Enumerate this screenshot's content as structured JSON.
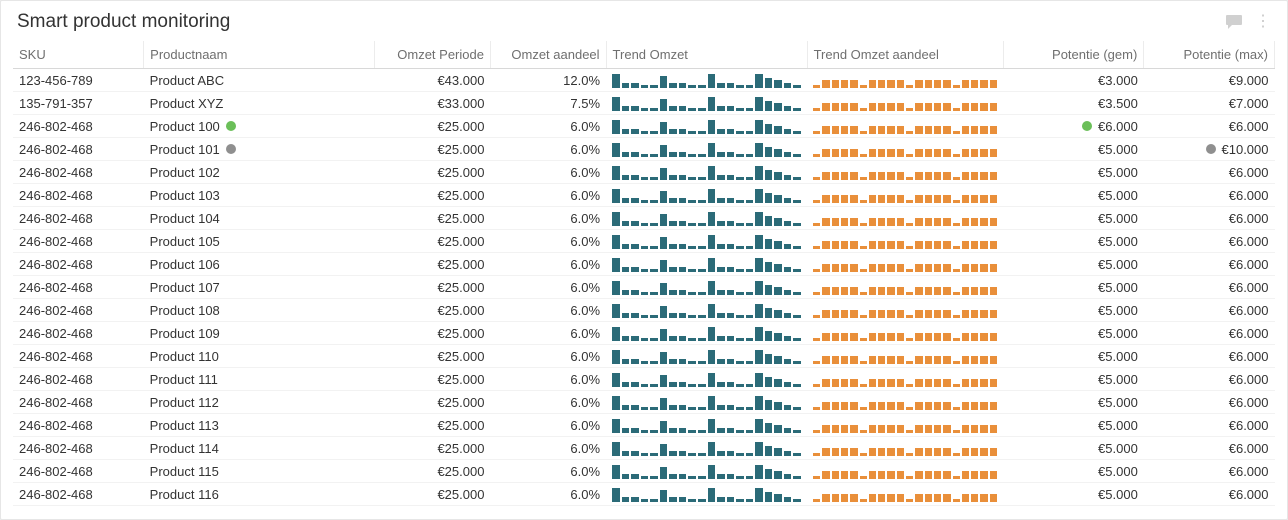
{
  "header": {
    "title": "Smart product monitoring"
  },
  "colors": {
    "spark_teal": "#2b6b78",
    "spark_orange": "#e98f3a",
    "dot_green": "#6bbf59",
    "dot_grey": "#8f8f8f",
    "body_bg": "#ececec",
    "panel_bg": "#ffffff",
    "border": "#e6e6e6",
    "text": "#333333",
    "header_text": "#6f6f6f"
  },
  "sparkline_teal_pattern": [
    14,
    5,
    5,
    3,
    3,
    12,
    5,
    5,
    3,
    3,
    14,
    5,
    5,
    3,
    3,
    14,
    10,
    8,
    5,
    3
  ],
  "sparkline_orange_pattern": [
    3,
    8,
    8,
    8,
    8,
    3,
    8,
    8,
    8,
    8,
    3,
    8,
    8,
    8,
    8,
    3,
    8,
    8,
    8,
    8
  ],
  "sparkline_max_height": 16,
  "columns": [
    {
      "key": "sku",
      "label": "SKU",
      "class": "col-sku",
      "align": "left"
    },
    {
      "key": "name",
      "label": "Productnaam",
      "class": "col-name",
      "align": "left"
    },
    {
      "key": "omzet",
      "label": "Omzet Periode",
      "class": "col-omzet",
      "align": "right"
    },
    {
      "key": "aandeel",
      "label": "Omzet aandeel",
      "class": "col-aandeel",
      "align": "right"
    },
    {
      "key": "trend1",
      "label": "Trend Omzet",
      "class": "col-trend1",
      "align": "left",
      "spark": "teal"
    },
    {
      "key": "trend2",
      "label": "Trend Omzet aandeel",
      "class": "col-trend2",
      "align": "left",
      "spark": "orange"
    },
    {
      "key": "potgem",
      "label": "Potentie (gem)",
      "class": "col-potgem",
      "align": "right"
    },
    {
      "key": "potmax",
      "label": "Potentie (max)",
      "class": "col-potmax",
      "align": "right"
    }
  ],
  "rows": [
    {
      "sku": "123-456-789",
      "name": "Product ABC",
      "omzet": "€43.000",
      "aandeel": "12.0%",
      "potgem": "€3.000",
      "potmax": "€9.000"
    },
    {
      "sku": "135-791-357",
      "name": "Product XYZ",
      "omzet": "€33.000",
      "aandeel": "7.5%",
      "potgem": "€3.500",
      "potmax": "€7.000"
    },
    {
      "sku": "246-802-468",
      "name": "Product 100",
      "name_dot": "green",
      "omzet": "€25.000",
      "aandeel": "6.0%",
      "potgem": "€6.000",
      "potgem_dot": "green",
      "potmax": "€6.000"
    },
    {
      "sku": "246-802-468",
      "name": "Product 101",
      "name_dot": "grey",
      "omzet": "€25.000",
      "aandeel": "6.0%",
      "potgem": "€5.000",
      "potmax": "€10.000",
      "potmax_dot": "grey"
    },
    {
      "sku": "246-802-468",
      "name": "Product 102",
      "omzet": "€25.000",
      "aandeel": "6.0%",
      "potgem": "€5.000",
      "potmax": "€6.000"
    },
    {
      "sku": "246-802-468",
      "name": "Product 103",
      "omzet": "€25.000",
      "aandeel": "6.0%",
      "potgem": "€5.000",
      "potmax": "€6.000"
    },
    {
      "sku": "246-802-468",
      "name": "Product 104",
      "omzet": "€25.000",
      "aandeel": "6.0%",
      "potgem": "€5.000",
      "potmax": "€6.000"
    },
    {
      "sku": "246-802-468",
      "name": "Product 105",
      "omzet": "€25.000",
      "aandeel": "6.0%",
      "potgem": "€5.000",
      "potmax": "€6.000"
    },
    {
      "sku": "246-802-468",
      "name": "Product 106",
      "omzet": "€25.000",
      "aandeel": "6.0%",
      "potgem": "€5.000",
      "potmax": "€6.000"
    },
    {
      "sku": "246-802-468",
      "name": "Product 107",
      "omzet": "€25.000",
      "aandeel": "6.0%",
      "potgem": "€5.000",
      "potmax": "€6.000"
    },
    {
      "sku": "246-802-468",
      "name": "Product 108",
      "omzet": "€25.000",
      "aandeel": "6.0%",
      "potgem": "€5.000",
      "potmax": "€6.000"
    },
    {
      "sku": "246-802-468",
      "name": "Product 109",
      "omzet": "€25.000",
      "aandeel": "6.0%",
      "potgem": "€5.000",
      "potmax": "€6.000"
    },
    {
      "sku": "246-802-468",
      "name": "Product 110",
      "omzet": "€25.000",
      "aandeel": "6.0%",
      "potgem": "€5.000",
      "potmax": "€6.000"
    },
    {
      "sku": "246-802-468",
      "name": "Product 111",
      "omzet": "€25.000",
      "aandeel": "6.0%",
      "potgem": "€5.000",
      "potmax": "€6.000"
    },
    {
      "sku": "246-802-468",
      "name": "Product 112",
      "omzet": "€25.000",
      "aandeel": "6.0%",
      "potgem": "€5.000",
      "potmax": "€6.000"
    },
    {
      "sku": "246-802-468",
      "name": "Product 113",
      "omzet": "€25.000",
      "aandeel": "6.0%",
      "potgem": "€5.000",
      "potmax": "€6.000"
    },
    {
      "sku": "246-802-468",
      "name": "Product 114",
      "omzet": "€25.000",
      "aandeel": "6.0%",
      "potgem": "€5.000",
      "potmax": "€6.000"
    },
    {
      "sku": "246-802-468",
      "name": "Product 115",
      "omzet": "€25.000",
      "aandeel": "6.0%",
      "potgem": "€5.000",
      "potmax": "€6.000"
    },
    {
      "sku": "246-802-468",
      "name": "Product 116",
      "omzet": "€25.000",
      "aandeel": "6.0%",
      "potgem": "€5.000",
      "potmax": "€6.000"
    }
  ]
}
